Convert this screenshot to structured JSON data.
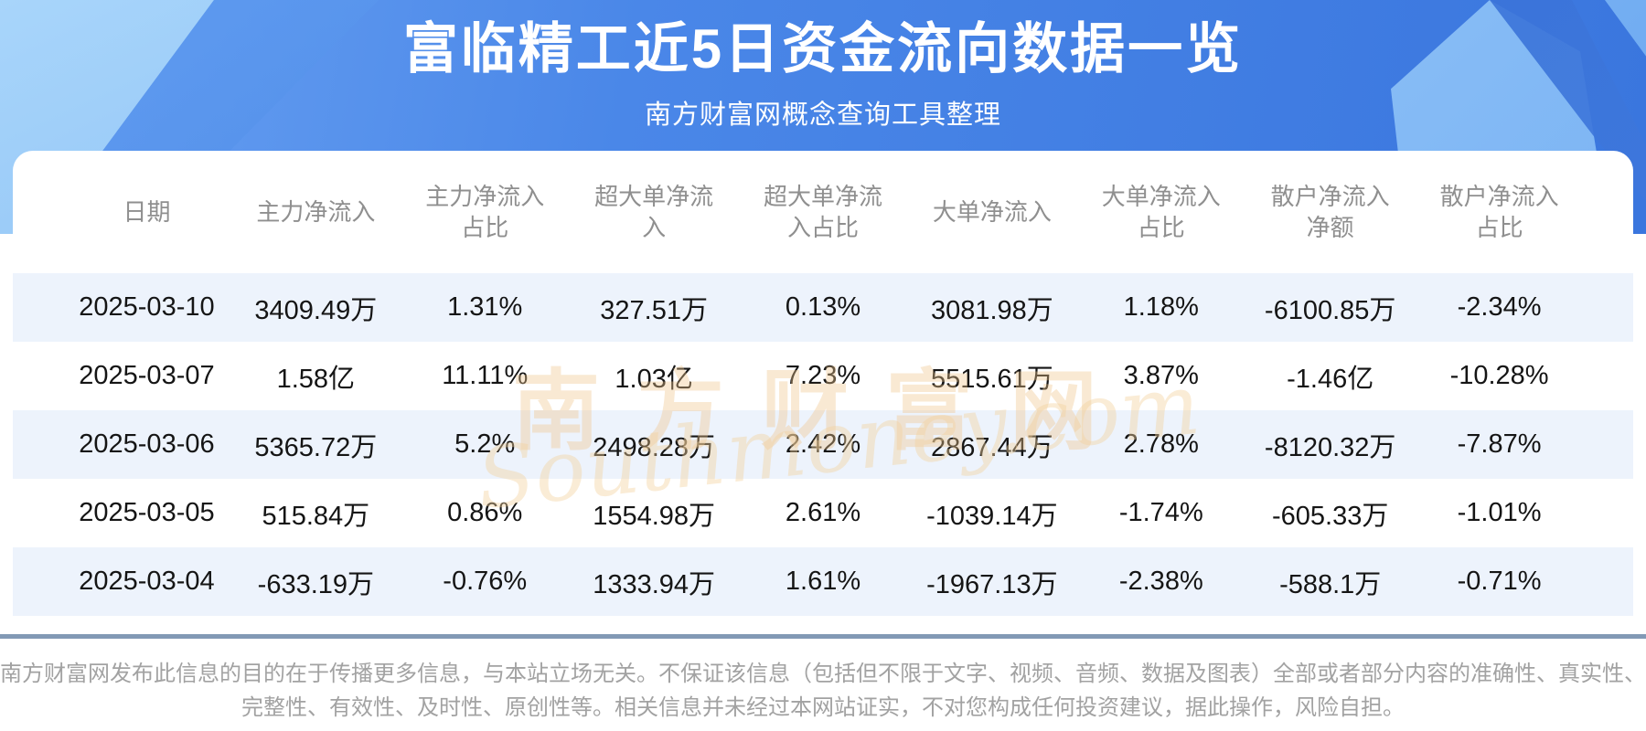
{
  "page": {
    "title": "富临精工近5日资金流向数据一览",
    "subtitle": "南方财富网概念查询工具整理"
  },
  "watermark": {
    "text_cn": "南方财富网",
    "text_en": "Southmoney.com"
  },
  "chart_data": {
    "type": "table",
    "title": "富临精工近5日资金流向数据一览",
    "subtitle": "南方财富网概念查询工具整理",
    "columns": [
      "日期",
      "主力净流入",
      "主力净流入占比",
      "超大单净流入",
      "超大单净流入占比",
      "大单净流入",
      "大单净流入占比",
      "散户净流入净额",
      "散户净流入占比"
    ],
    "rows": [
      [
        "2025-03-10",
        "3409.49万",
        "1.31%",
        "327.51万",
        "0.13%",
        "3081.98万",
        "1.18%",
        "-6100.85万",
        "-2.34%"
      ],
      [
        "2025-03-07",
        "1.58亿",
        "11.11%",
        "1.03亿",
        "7.23%",
        "5515.61万",
        "3.87%",
        "-1.46亿",
        "-10.28%"
      ],
      [
        "2025-03-06",
        "5365.72万",
        "5.2%",
        "2498.28万",
        "2.42%",
        "2867.44万",
        "2.78%",
        "-8120.32万",
        "-7.87%"
      ],
      [
        "2025-03-05",
        "515.84万",
        "0.86%",
        "1554.98万",
        "2.61%",
        "-1039.14万",
        "-1.74%",
        "-605.33万",
        "-1.01%"
      ],
      [
        "2025-03-04",
        "-633.19万",
        "-0.76%",
        "1333.94万",
        "1.61%",
        "-1967.13万",
        "-2.38%",
        "-588.1万",
        "-0.71%"
      ]
    ],
    "layout_hints": {
      "striped_rows": "odd rows light blue",
      "header_text_color": "#8f8f8f",
      "cell_text_color": "#151515"
    }
  },
  "footer": {
    "line1": "南方财富网发布此信息的目的在于传播更多信息，与本站立场无关。不保证该信息（包括但不限于文字、视频、音频、数据及图表）全部或者部分内容的准确性、真实性、",
    "line2": "完整性、有效性、及时性、原创性等。相关信息并未经过本网站证实，不对您构成任何投资建议，据此操作，风险自担。"
  },
  "colors": {
    "banner_blue": "#3f7ce0",
    "panel_light_blue": "#8ec4f7",
    "row_stripe": "#edf3fc",
    "divider": "#8299b5",
    "watermark_orange": "#f0c68c",
    "title_text": "#ffffff"
  }
}
